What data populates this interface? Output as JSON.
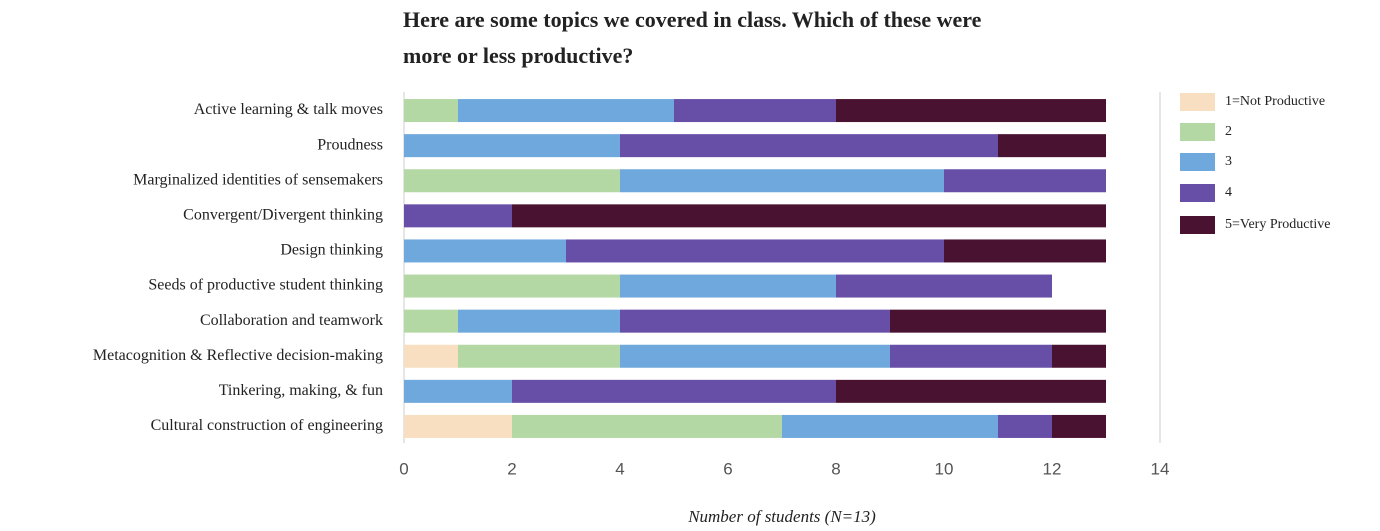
{
  "chart_data": {
    "type": "stacked-barh",
    "title": [
      "Here are some topics we covered in class. Which of these were",
      "more or less productive?"
    ],
    "x_label": "Number of students (N=13)",
    "categories": [
      "Active learning & talk moves",
      "Proudness",
      "Marginalized identities of sensemakers",
      "Convergent/Divergent thinking",
      "Design thinking",
      "Seeds of productive student thinking",
      "Collaboration and teamwork",
      "Metacognition & Reflective decision-making",
      "Tinkering, making, & fun",
      "Cultural construction of engineering"
    ],
    "series": [
      {
        "name": "1=Not Productive",
        "color": "#f9dfc2",
        "values": [
          0,
          0,
          0,
          0,
          0,
          0,
          0,
          1,
          0,
          2
        ]
      },
      {
        "name": "2",
        "color": "#b4d8a4",
        "values": [
          1,
          0,
          4,
          0,
          0,
          4,
          1,
          3,
          0,
          5
        ]
      },
      {
        "name": "3",
        "color": "#6fa8dc",
        "values": [
          4,
          4,
          6,
          0,
          3,
          4,
          3,
          5,
          2,
          4
        ]
      },
      {
        "name": "4",
        "color": "#674ea7",
        "values": [
          3,
          7,
          3,
          2,
          7,
          4,
          5,
          3,
          6,
          1
        ]
      },
      {
        "name": "5=Very Productive",
        "color": "#4a1231",
        "values": [
          5,
          2,
          0,
          11,
          3,
          0,
          4,
          1,
          5,
          1
        ]
      }
    ],
    "xlim": [
      0,
      14
    ],
    "xticks": [
      0,
      2,
      4,
      6,
      8,
      10,
      12,
      14
    ],
    "legend": "right"
  }
}
